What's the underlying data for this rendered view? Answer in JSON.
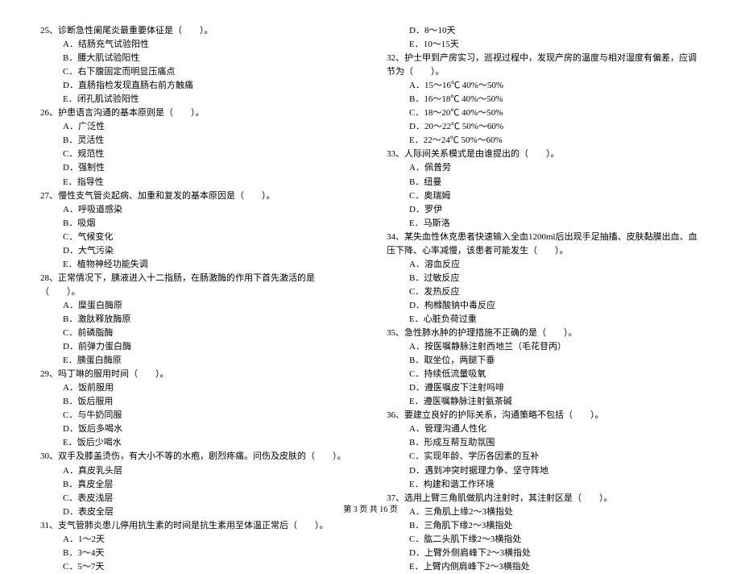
{
  "left": {
    "q25": {
      "stem": "25、诊断急性阑尾炎最重要体征是（　　）。",
      "opts": [
        "A．结肠充气试验阳性",
        "B．腰大肌试验阳性",
        "C．右下腹固定而明显压痛点",
        "D．直肠指检发现直肠右前方触痛",
        "E．闭孔肌试验阳性"
      ]
    },
    "q26": {
      "stem": "26、护患语言沟通的基本原则是（　　）。",
      "opts": [
        "A．广泛性",
        "B．灵活性",
        "C．规范性",
        "D．强制性",
        "E．指导性"
      ]
    },
    "q27": {
      "stem": "27、慢性支气管炎起病、加重和复发的基本原因是（　　）。",
      "opts": [
        "A．呼吸道感染",
        "B．吸烟",
        "C．气候变化",
        "D．大气污染",
        "E．植物神经功能失调"
      ]
    },
    "q28": {
      "stem": "28、正常情况下，胰液进入十二指肠，在肠激酶的作用下首先激活的是（　　）。",
      "opts": [
        "A．糜蛋白酶原",
        "B．激肽释放酶原",
        "C．前磷脂酶",
        "D．前弹力蛋白酶",
        "E．胰蛋白酶原"
      ]
    },
    "q29": {
      "stem": "29、吗丁啉的服用时间（　　）。",
      "opts": [
        "A．饭前服用",
        "B．饭后服用",
        "C．与牛奶同服",
        "D．饭后多喝水",
        "E．饭后少喝水"
      ]
    },
    "q30": {
      "stem": "30、双手及膝盖烫伤，有大小不等的水疱，剧烈疼痛。问伤及皮肤的（　　）。",
      "opts": [
        "A．真皮乳头层",
        "B．真皮全层",
        "C．表皮浅层",
        "D．表皮全层"
      ]
    },
    "q31": {
      "stem": "31、支气管肺炎患儿停用抗生素的时间是抗生素用至体温正常后（　　）。",
      "opts": [
        "A．1～2天",
        "B．3～4天",
        "C．5～7天"
      ]
    }
  },
  "right": {
    "q31cont": {
      "opts": [
        "D．8～10天",
        "E．10～15天"
      ]
    },
    "q32": {
      "stem": "32、护士甲到产房实习，巡视过程中，发现产房的温度与相对湿度有偏差，应调节为（　　）。",
      "opts": [
        "A．15～16℃ 40%～50%",
        "B．16～18℃ 40%～50%",
        "C．18～20℃ 40%～50%",
        "D．20～22℃ 50%～60%",
        "E．22～24℃ 50%～60%"
      ]
    },
    "q33": {
      "stem": "33、人际间关系模式是由谁提出的（　　）。",
      "opts": [
        "A．佩普劳",
        "B．纽曼",
        "C．奥瑞姆",
        "D．罗伊",
        "E．马斯洛"
      ]
    },
    "q34": {
      "stem": "34、某失血性休克患者快速输入全血1200ml后出现手足抽搐、皮肤黏膜出血、血压下降、心率减慢，该患者可能发生（　　）。",
      "opts": [
        "A．溶血反应",
        "B．过敏反应",
        "C．发热反应",
        "D．枸橼酸钠中毒反应",
        "E．心脏负荷过重"
      ]
    },
    "q35": {
      "stem": "35、急性肺水肿的护理措施不正确的是（　　）。",
      "opts": [
        "A．按医嘱静脉注射西地兰（毛花苷丙）",
        "B．取坐位，两腿下垂",
        "C．持续低流量吸氧",
        "D．遵医嘱皮下注射吗啡",
        "E．遵医嘱静脉注射氨茶碱"
      ]
    },
    "q36": {
      "stem": "36、要建立良好的护际关系，沟通策略不包括（　　）。",
      "opts": [
        "A．管理沟通人性化",
        "B．形成互帮互助氛围",
        "C．实现年龄、学历各因素的互补",
        "D．遇到冲突时据理力争、坚守阵地",
        "E．构建和谐工作环境"
      ]
    },
    "q37": {
      "stem": "37、选用上臂三角肌做肌内注射时，其注射区是（　　）。",
      "opts": [
        "A．三角肌上缘2～3横指处",
        "B．三角肌下缘2～3横指处",
        "C．肱二头肌下缘2～3横指处",
        "D．上臂外侧肩峰下2～3横指处",
        "E．上臂内侧肩峰下2～3横指处"
      ]
    }
  },
  "footer": "第 3 页 共 16 页"
}
